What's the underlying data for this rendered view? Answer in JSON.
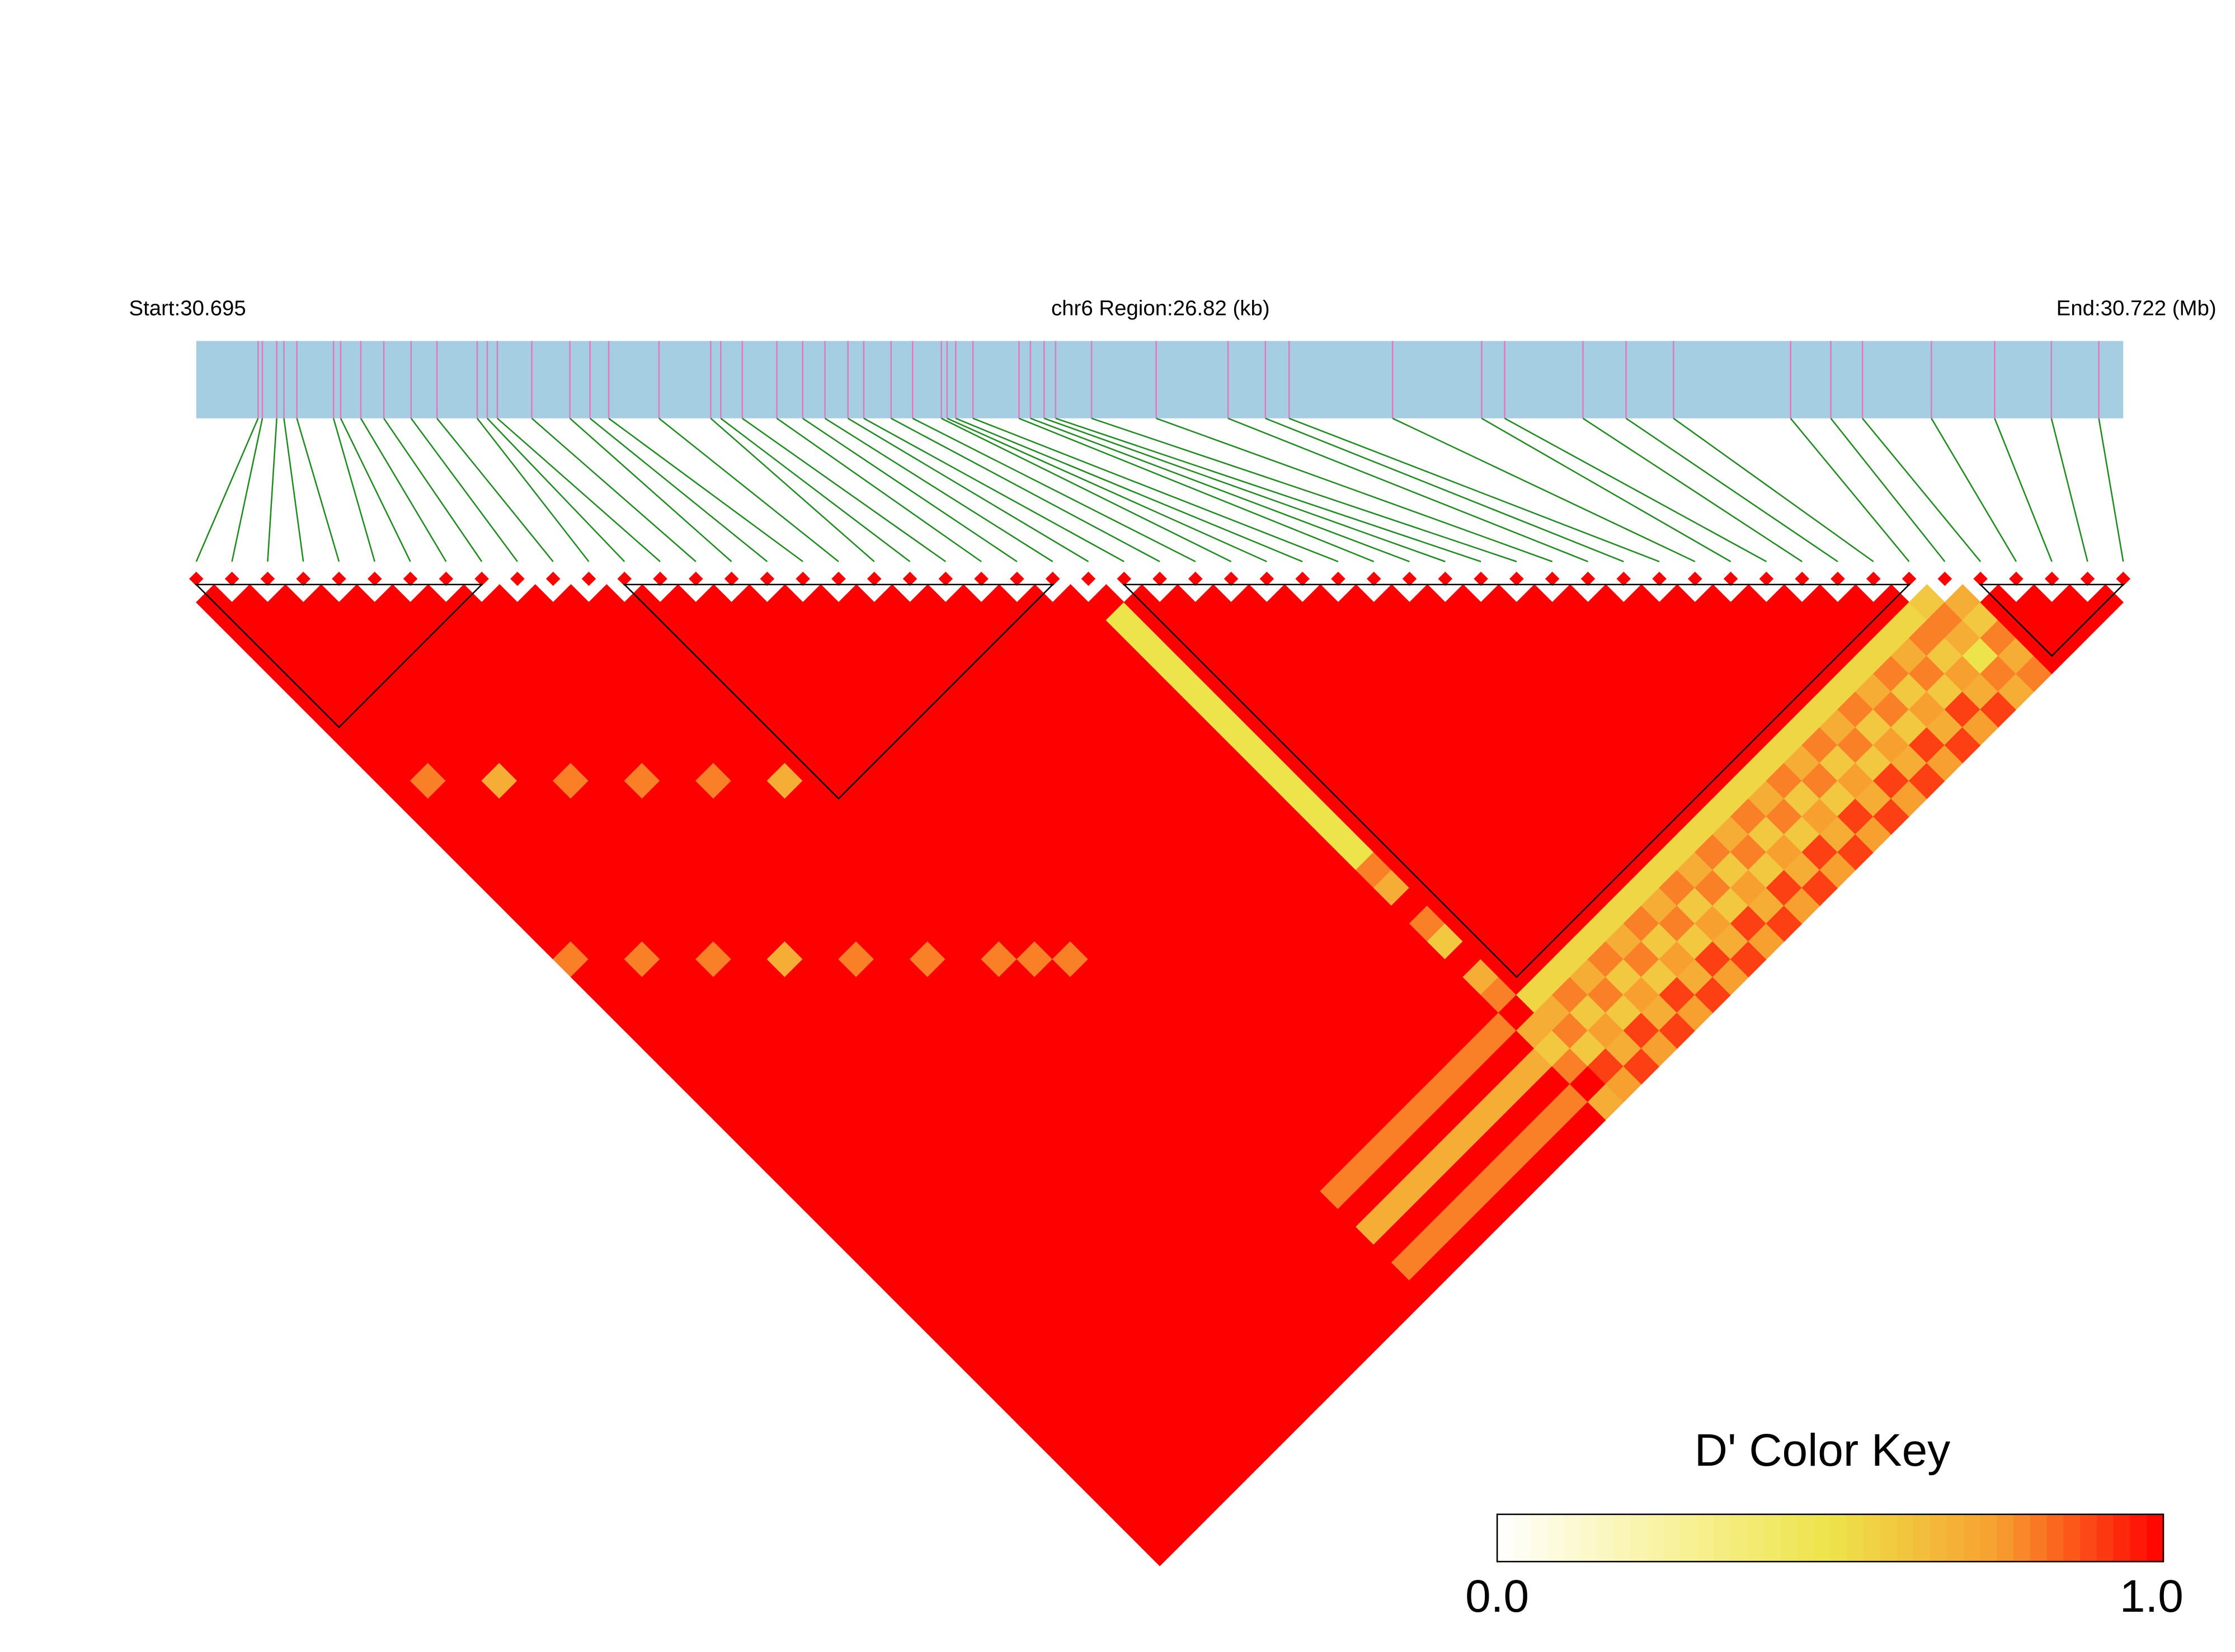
{
  "chart_data": {
    "type": "ld-heatmap",
    "start_label": "Start:30.695",
    "region_label": "chr6 Region:26.82 (kb)",
    "end_label": "End:30.722 (Mb)",
    "xlim": [
      30.695,
      30.72182
    ],
    "positions": [
      30.69586,
      30.69592,
      30.69612,
      30.69622,
      30.6964,
      30.69691,
      30.69701,
      30.69729,
      30.69761,
      30.69799,
      30.69835,
      30.69891,
      30.69905,
      30.69919,
      30.69967,
      30.7002,
      30.70048,
      30.70074,
      30.70144,
      30.70216,
      30.7023,
      30.7026,
      30.70308,
      30.70344,
      30.70375,
      30.70407,
      30.70429,
      30.70467,
      30.70497,
      30.70537,
      30.70545,
      30.70557,
      30.70581,
      30.70645,
      30.70661,
      30.7068,
      30.70696,
      30.70746,
      30.70836,
      30.70936,
      30.70988,
      30.71021,
      30.71165,
      30.71289,
      30.71321,
      30.7143,
      30.7149,
      30.71556,
      30.71719,
      30.71775,
      30.71819,
      30.71915,
      30.72003,
      30.72082,
      30.72148
    ],
    "dprime": [
      [
        1,
        1,
        1,
        1,
        1,
        1,
        1,
        1,
        1,
        1,
        1,
        1,
        1,
        1,
        1,
        1,
        1,
        1,
        1,
        1,
        0.8,
        1,
        1,
        1,
        1,
        1,
        1,
        1,
        1,
        1,
        1,
        1,
        1,
        1,
        1,
        1,
        1,
        1,
        1,
        1,
        1,
        1,
        1,
        1,
        1,
        1,
        1,
        1,
        1,
        1,
        1,
        1,
        1,
        1
      ],
      [
        1,
        1,
        1,
        1,
        1,
        1,
        1,
        1,
        1,
        1,
        0.8,
        1,
        1,
        1,
        1,
        1,
        1,
        1,
        1,
        1,
        1,
        1,
        1,
        1,
        1,
        1,
        1,
        1,
        1,
        1,
        1,
        1,
        1,
        1,
        1,
        1,
        1,
        1,
        1,
        1,
        1,
        1,
        1,
        1,
        1,
        1,
        1,
        1,
        1,
        1,
        1,
        1,
        1
      ],
      [
        1,
        1,
        1,
        1,
        1,
        1,
        1,
        1,
        1,
        1,
        1,
        1,
        1,
        1,
        1,
        1,
        1,
        1,
        1,
        1,
        0.8,
        1,
        1,
        1,
        1,
        1,
        1,
        1,
        1,
        1,
        1,
        1,
        1,
        1,
        1,
        1,
        1,
        1,
        1,
        1,
        1,
        1,
        1,
        1,
        1,
        1,
        1,
        1,
        1,
        1,
        1,
        1
      ],
      [
        1,
        1,
        1,
        1,
        1,
        1,
        1,
        1,
        1,
        1,
        0.7,
        1,
        1,
        1,
        1,
        1,
        1,
        1,
        1,
        1,
        1,
        1,
        1,
        1,
        1,
        1,
        1,
        1,
        1,
        1,
        1,
        1,
        1,
        1,
        1,
        1,
        1,
        1,
        1,
        1,
        1,
        1,
        1,
        1,
        1,
        1,
        1,
        1,
        1,
        1,
        1
      ],
      [
        1,
        1,
        1,
        1,
        1,
        1,
        1,
        1,
        1,
        1,
        1,
        1,
        1,
        1,
        1,
        1,
        1,
        1,
        1,
        1,
        0.8,
        1,
        1,
        1,
        1,
        1,
        1,
        1,
        1,
        1,
        1,
        1,
        1,
        1,
        1,
        1,
        1,
        1,
        1,
        1,
        1,
        1,
        1,
        1,
        1,
        1,
        1,
        1,
        1,
        1
      ],
      [
        1,
        1,
        1,
        1,
        1,
        1,
        1,
        1,
        1,
        1,
        0.8,
        1,
        1,
        1,
        1,
        1,
        1,
        1,
        1,
        1,
        1,
        1,
        1,
        1,
        1,
        1,
        1,
        1,
        1,
        1,
        1,
        1,
        1,
        1,
        1,
        1,
        1,
        1,
        1,
        1,
        1,
        1,
        1,
        1,
        1,
        1,
        1,
        1,
        1
      ],
      [
        1,
        1,
        1,
        1,
        1,
        1,
        1,
        1,
        1,
        1,
        1,
        1,
        1,
        1,
        1,
        1,
        1,
        1,
        1,
        1,
        0.7,
        1,
        1,
        1,
        1,
        1,
        1,
        1,
        1,
        1,
        1,
        1,
        1,
        1,
        1,
        1,
        1,
        1,
        1,
        1,
        1,
        1,
        1,
        1,
        1,
        1,
        1,
        1
      ],
      [
        1,
        1,
        1,
        1,
        1,
        1,
        1,
        1,
        1,
        1,
        0.8,
        1,
        1,
        1,
        1,
        1,
        1,
        1,
        1,
        1,
        1,
        1,
        1,
        1,
        1,
        1,
        1,
        1,
        1,
        1,
        1,
        1,
        1,
        1,
        1,
        1,
        1,
        1,
        1,
        1,
        1,
        1,
        1,
        1,
        1,
        1,
        1
      ],
      [
        1,
        1,
        1,
        1,
        1,
        1,
        1,
        1,
        1,
        1,
        1,
        1,
        1,
        1,
        1,
        1,
        1,
        1,
        1,
        1,
        0.8,
        1,
        1,
        1,
        1,
        1,
        1,
        1,
        1,
        1,
        1,
        1,
        1,
        1,
        1,
        1,
        1,
        1,
        1,
        1,
        1,
        1,
        1,
        1,
        1,
        1
      ],
      [
        1,
        1,
        1,
        1,
        1,
        1,
        1,
        1,
        1,
        1,
        0.8,
        1,
        1,
        1,
        1,
        1,
        1,
        1,
        1,
        1,
        1,
        1,
        1,
        1,
        1,
        1,
        1,
        1,
        1,
        1,
        1,
        1,
        1,
        1,
        1,
        1,
        1,
        1,
        1,
        1,
        1,
        1,
        1,
        1,
        1
      ],
      [
        1,
        1,
        1,
        1,
        1,
        1,
        1,
        1,
        1,
        1,
        1,
        1,
        1,
        1,
        1,
        1,
        1,
        1,
        1,
        1,
        0.8,
        1,
        1,
        1,
        1,
        1,
        1,
        1,
        1,
        1,
        1,
        1,
        1,
        1,
        1,
        1,
        1,
        1,
        1,
        1,
        1,
        1,
        1,
        1
      ],
      [
        1,
        1,
        1,
        1,
        1,
        1,
        1,
        1,
        1,
        1,
        0.7,
        1,
        1,
        1,
        1,
        1,
        1,
        1,
        1,
        1,
        1,
        1,
        1,
        1,
        1,
        1,
        1,
        1,
        1,
        1,
        1,
        1,
        1,
        1,
        1,
        1,
        1,
        1,
        1,
        1,
        1,
        1,
        1
      ],
      [
        1,
        1,
        1,
        1,
        1,
        1,
        1,
        1,
        1,
        1,
        1,
        1,
        1,
        1,
        1,
        1,
        1,
        1,
        1,
        1,
        0.8,
        1,
        1,
        1,
        1,
        1,
        1,
        1,
        1,
        1,
        1,
        1,
        1,
        1,
        1,
        1,
        1,
        1,
        1,
        1,
        1,
        1
      ],
      [
        1,
        1,
        1,
        1,
        1,
        1,
        1,
        1,
        1,
        1,
        1,
        1,
        1,
        1,
        1,
        1,
        1,
        1,
        1,
        1,
        0.8,
        1,
        1,
        1,
        1,
        1,
        1,
        1,
        1,
        1,
        1,
        1,
        1,
        1,
        1,
        1,
        1,
        1,
        1,
        1,
        1
      ],
      [
        1,
        1,
        1,
        1,
        1,
        1,
        1,
        1,
        1,
        1,
        1,
        1,
        1,
        1,
        1,
        1,
        1,
        1,
        1,
        1,
        0.8,
        1,
        1,
        1,
        1,
        1,
        1,
        1,
        1,
        1,
        1,
        1,
        1,
        1,
        1,
        1,
        1,
        1,
        1,
        1
      ],
      [
        1,
        1,
        1,
        1,
        1,
        1,
        1,
        1,
        1,
        1,
        1,
        1,
        1,
        1,
        1,
        1,
        1,
        1,
        1,
        1,
        1,
        1,
        1,
        1,
        1,
        1,
        1,
        1,
        1,
        1,
        1,
        1,
        1,
        0.8,
        1,
        0.7,
        1,
        0.8,
        1
      ],
      [
        1,
        1,
        1,
        1,
        1,
        1,
        1,
        1,
        1,
        1,
        1,
        1,
        1,
        1,
        1,
        1,
        1,
        1,
        1,
        1,
        1,
        1,
        1,
        1,
        1,
        1,
        1,
        1,
        1,
        1,
        1,
        1,
        0.8,
        1,
        0.7,
        1,
        0.8,
        1
      ],
      [
        1,
        1,
        1,
        1,
        1,
        1,
        1,
        1,
        1,
        1,
        1,
        1,
        1,
        1,
        1,
        1,
        1,
        1,
        1,
        1,
        1,
        1,
        1,
        1,
        1,
        1,
        1,
        1,
        1,
        1,
        1,
        0.8,
        1,
        0.7,
        1,
        0.8,
        1
      ],
      [
        1,
        1,
        1,
        1,
        1,
        1,
        1,
        1,
        1,
        1,
        1,
        1,
        1,
        1,
        1,
        1,
        1,
        1,
        1,
        1,
        1,
        1,
        1,
        1,
        1,
        1,
        1,
        1,
        1,
        1,
        0.8,
        1,
        0.7,
        1,
        0.8,
        1
      ],
      [
        1,
        1,
        1,
        1,
        1,
        1,
        1,
        1,
        1,
        1,
        1,
        1,
        1,
        1,
        1,
        1,
        1,
        1,
        1,
        1,
        1,
        1,
        1,
        1,
        1,
        1,
        1,
        1,
        1,
        0.8,
        1,
        0.7,
        1,
        0.8,
        1
      ],
      [
        1,
        1,
        1,
        1,
        1,
        1,
        1,
        1,
        1,
        1,
        1,
        1,
        1,
        1,
        1,
        1,
        1,
        1,
        1,
        1,
        1,
        1,
        1,
        1,
        1,
        1,
        1,
        1,
        0.8,
        1,
        0.7,
        1,
        0.8,
        1
      ],
      [
        1,
        1,
        1,
        1,
        1,
        1,
        1,
        1,
        1,
        1,
        1,
        1,
        1,
        1,
        1,
        1,
        1,
        1,
        1,
        1,
        1,
        1,
        1,
        1,
        1,
        1,
        1,
        0.8,
        1,
        0.7,
        1,
        0.8,
        1
      ],
      [
        1,
        1,
        1,
        1,
        1,
        1,
        1,
        1,
        1,
        1,
        1,
        1,
        1,
        1,
        1,
        1,
        1,
        1,
        1,
        1,
        1,
        1,
        1,
        1,
        1,
        1,
        0.8,
        1,
        0.7,
        1,
        0.8,
        1
      ],
      [
        1,
        1,
        1,
        1,
        1,
        1,
        1,
        1,
        1,
        1,
        1,
        1,
        1,
        1,
        1,
        1,
        1,
        1,
        1,
        1,
        1,
        1,
        1,
        1,
        1,
        0.8,
        1,
        0.7,
        1,
        0.8,
        1
      ],
      [
        1,
        1,
        1,
        1,
        1,
        1,
        1,
        1,
        1,
        1,
        1,
        1,
        1,
        1,
        1,
        1,
        1,
        1,
        1,
        1,
        1,
        1,
        1,
        1,
        0.8,
        1,
        0.7,
        1,
        0.8,
        1
      ],
      [
        1,
        0.5,
        0.5,
        0.5,
        0.5,
        0.5,
        0.5,
        0.5,
        0.5,
        0.5,
        0.5,
        0.5,
        0.5,
        0.5,
        0.5,
        0.8,
        0.7,
        1,
        0.8,
        0.6,
        1,
        0.7,
        0.8,
        1,
        0.7,
        0.6,
        0.8,
        1,
        0.7
      ],
      [
        1,
        1,
        1,
        1,
        1,
        1,
        1,
        1,
        1,
        1,
        1,
        1,
        1,
        1,
        1,
        1,
        1,
        1,
        1,
        1,
        1,
        1,
        0.55,
        0.7,
        0.8,
        0.6,
        0.9,
        0.75
      ],
      [
        1,
        1,
        1,
        1,
        1,
        1,
        1,
        1,
        1,
        1,
        1,
        1,
        1,
        1,
        1,
        1,
        1,
        1,
        1,
        1,
        1,
        0.55,
        0.8,
        0.6,
        0.75,
        0.7,
        0.9
      ],
      [
        1,
        1,
        1,
        1,
        1,
        1,
        1,
        1,
        1,
        1,
        1,
        1,
        1,
        1,
        1,
        1,
        1,
        1,
        1,
        1,
        0.55,
        0.7,
        0.8,
        0.6,
        0.9,
        0.75
      ],
      [
        1,
        1,
        1,
        1,
        1,
        1,
        1,
        1,
        1,
        1,
        1,
        1,
        1,
        1,
        1,
        1,
        1,
        1,
        1,
        0.55,
        0.8,
        0.6,
        0.75,
        0.7,
        0.9
      ],
      [
        1,
        1,
        1,
        1,
        1,
        1,
        1,
        1,
        1,
        1,
        1,
        1,
        1,
        1,
        1,
        1,
        1,
        1,
        0.55,
        0.7,
        0.8,
        0.6,
        0.9,
        0.75
      ],
      [
        1,
        1,
        1,
        1,
        1,
        1,
        1,
        1,
        1,
        1,
        1,
        1,
        1,
        1,
        1,
        1,
        1,
        0.55,
        0.8,
        0.6,
        0.75,
        0.7,
        0.9
      ],
      [
        1,
        1,
        1,
        1,
        1,
        1,
        1,
        1,
        1,
        1,
        1,
        1,
        1,
        1,
        1,
        1,
        0.55,
        0.7,
        0.8,
        0.6,
        0.9,
        0.75
      ],
      [
        1,
        1,
        1,
        1,
        1,
        1,
        1,
        1,
        1,
        1,
        1,
        1,
        1,
        1,
        1,
        0.55,
        0.8,
        0.6,
        0.75,
        0.7,
        0.9
      ],
      [
        1,
        1,
        1,
        1,
        1,
        1,
        1,
        1,
        1,
        1,
        1,
        1,
        1,
        1,
        0.55,
        0.7,
        0.8,
        0.6,
        0.9,
        0.75
      ],
      [
        1,
        1,
        1,
        1,
        1,
        1,
        1,
        1,
        1,
        1,
        1,
        1,
        1,
        0.55,
        0.8,
        0.6,
        0.75,
        0.7,
        0.9
      ],
      [
        1,
        1,
        1,
        1,
        1,
        1,
        1,
        1,
        1,
        1,
        1,
        1,
        0.55,
        0.7,
        0.8,
        0.6,
        0.9,
        0.75
      ],
      [
        1,
        1,
        1,
        1,
        1,
        1,
        1,
        1,
        1,
        1,
        1,
        0.55,
        0.8,
        0.6,
        0.75,
        0.7,
        0.9
      ],
      [
        1,
        1,
        1,
        1,
        1,
        1,
        1,
        1,
        1,
        1,
        0.55,
        0.7,
        0.8,
        0.6,
        0.9,
        0.75
      ],
      [
        1,
        1,
        1,
        1,
        1,
        1,
        1,
        1,
        1,
        0.55,
        0.8,
        0.6,
        0.75,
        0.7,
        0.9
      ],
      [
        1,
        1,
        1,
        1,
        1,
        1,
        1,
        1,
        0.55,
        0.7,
        0.8,
        0.6,
        0.9,
        0.75
      ],
      [
        1,
        1,
        1,
        1,
        1,
        1,
        1,
        0.55,
        0.8,
        0.6,
        0.75,
        0.7,
        0.9
      ],
      [
        1,
        1,
        1,
        1,
        1,
        1,
        0.55,
        0.7,
        0.8,
        0.6,
        0.9,
        0.75
      ],
      [
        1,
        1,
        1,
        1,
        1,
        0.55,
        0.8,
        0.6,
        0.75,
        0.7,
        0.9
      ],
      [
        1,
        1,
        1,
        1,
        0.55,
        0.7,
        0.8,
        0.6,
        0.9,
        0.75
      ],
      [
        1,
        1,
        1,
        0.55,
        0.8,
        0.6,
        0.75,
        0.7,
        0.9
      ],
      [
        1,
        1,
        0.55,
        0.7,
        0.8,
        0.6,
        0.9,
        0.75
      ],
      [
        1,
        0.55,
        0.8,
        0.6,
        0.75,
        0.7,
        0.9
      ],
      [
        0.6,
        0.8,
        0.7,
        0.5,
        0.8,
        0.7
      ],
      [
        0.7,
        0.6,
        0.8,
        0.7,
        0.8
      ],
      [
        1,
        1,
        1,
        1
      ],
      [
        1,
        1,
        1
      ],
      [
        1,
        1
      ],
      [
        1
      ]
    ],
    "blocks": [
      [
        0,
        8
      ],
      [
        12,
        24
      ],
      [
        26,
        48
      ],
      [
        50,
        54
      ]
    ],
    "colormap": [
      "#ffffff",
      "#f9f3a0",
      "#ede34a",
      "#f7a030",
      "#ff0000"
    ],
    "key": {
      "title": "D' Color Key",
      "lim": [
        0,
        1
      ],
      "ticks": [
        {
          "value": 0,
          "label": "0.0"
        },
        {
          "value": 1,
          "label": "1.0"
        }
      ]
    },
    "colors": {
      "bar": "#a6cee3",
      "snp_line": "#e07ac0",
      "connector": "#1f8c1f",
      "block_outline": "#000000",
      "marker": "#ff0000"
    }
  }
}
